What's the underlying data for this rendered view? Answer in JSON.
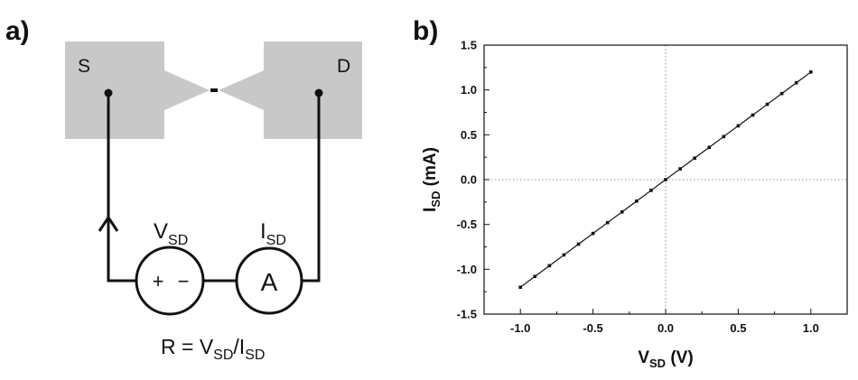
{
  "panels": {
    "a": "a)",
    "b": "b)"
  },
  "circuit": {
    "source_label": "S",
    "drain_label": "D",
    "voltage_symbol": "V",
    "voltage_subscript": "SD",
    "current_symbol": "I",
    "current_subscript": "SD",
    "plus_sign": "+",
    "minus_sign": "−",
    "ammeter_label": "A",
    "formula": {
      "lhs": "R = V",
      "sub1": "SD",
      "slash": "/I",
      "sub2": "SD"
    },
    "colors": {
      "electrode": "#c8c8c8",
      "wire": "#111111"
    }
  },
  "chart_data": {
    "type": "line",
    "title": "",
    "xlabel": {
      "symbol": "V",
      "subscript": "SD",
      "unit": " (V)"
    },
    "ylabel": {
      "symbol": "I",
      "subscript": "SD",
      "unit": " (mA)"
    },
    "xlim": [
      -1.25,
      1.25
    ],
    "ylim": [
      -1.5,
      1.5
    ],
    "xticks": [
      -1.0,
      -0.5,
      0.0,
      0.5,
      1.0
    ],
    "xtick_labels": [
      "-1.0",
      "-0.5",
      "0.0",
      "0.5",
      "1.0"
    ],
    "yticks": [
      -1.5,
      -1.0,
      -0.5,
      0.0,
      0.5,
      1.0,
      1.5
    ],
    "ytick_labels": [
      "-1.5",
      "-1.0",
      "-0.5",
      "0.0",
      "0.5",
      "1.0",
      "1.5"
    ],
    "grid": false,
    "zero_lines": true,
    "series": [
      {
        "x": [
          -1.0,
          -0.9,
          -0.8,
          -0.7,
          -0.6,
          -0.5,
          -0.4,
          -0.3,
          -0.2,
          -0.1,
          0.0,
          0.1,
          0.2,
          0.3,
          0.4,
          0.5,
          0.6,
          0.7,
          0.8,
          0.9,
          1.0
        ],
        "y": [
          -1.2,
          -1.08,
          -0.96,
          -0.84,
          -0.72,
          -0.6,
          -0.48,
          -0.36,
          -0.24,
          -0.12,
          0.0,
          0.12,
          0.24,
          0.36,
          0.48,
          0.6,
          0.72,
          0.84,
          0.96,
          1.08,
          1.2
        ],
        "color": "#111111",
        "marker": "square"
      }
    ]
  }
}
